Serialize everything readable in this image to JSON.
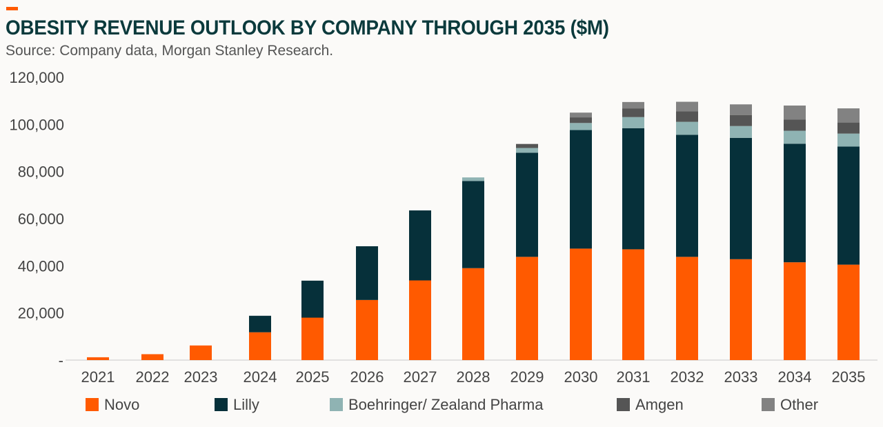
{
  "header": {
    "title": "OBESITY REVENUE OUTLOOK BY COMPANY THROUGH 2035 ($M)",
    "source": "Source: Company data, Morgan Stanley Research.",
    "accent_color": "#ff5a00"
  },
  "chart_data": {
    "type": "bar",
    "stacked": true,
    "title": "OBESITY REVENUE OUTLOOK BY COMPANY THROUGH 2035 ($M)",
    "xlabel": "",
    "ylabel": "",
    "ylim": [
      0,
      120000
    ],
    "yticks": [
      0,
      20000,
      40000,
      60000,
      80000,
      100000,
      120000
    ],
    "ytick_labels": [
      "-",
      "20,000",
      "40,000",
      "60,000",
      "80,000",
      "100,000",
      "120,000"
    ],
    "grid": false,
    "legend_position": "bottom",
    "categories": [
      "2021",
      "2022",
      "2023",
      "2024",
      "2025",
      "2026",
      "2027",
      "2028",
      "2029",
      "2030",
      "2031",
      "2032",
      "2033",
      "2034",
      "2035"
    ],
    "series": [
      {
        "name": "Novo",
        "color": "#ff5a00",
        "values": [
          1200,
          2500,
          6200,
          11800,
          18000,
          25500,
          33800,
          39000,
          43800,
          47300,
          47000,
          43800,
          42800,
          41500,
          40500
        ]
      },
      {
        "name": "Lilly",
        "color": "#06303a",
        "values": [
          0,
          0,
          0,
          7000,
          15700,
          22800,
          29700,
          37000,
          44200,
          50300,
          51400,
          51800,
          51500,
          50300,
          50100
        ]
      },
      {
        "name": "Boehringer/ Zealand Pharma",
        "color": "#8fb3b3",
        "values": [
          0,
          0,
          0,
          0,
          0,
          0,
          0,
          1500,
          2000,
          3000,
          4700,
          5500,
          5000,
          5500,
          5500
        ]
      },
      {
        "name": "Amgen",
        "color": "#555555",
        "values": [
          0,
          0,
          0,
          0,
          0,
          0,
          0,
          0,
          1700,
          2400,
          3700,
          4500,
          4700,
          4700,
          4700
        ]
      },
      {
        "name": "Other",
        "color": "#828282",
        "values": [
          0,
          0,
          0,
          0,
          0,
          0,
          0,
          0,
          0,
          2000,
          2700,
          4000,
          4500,
          6000,
          6000
        ]
      }
    ]
  }
}
